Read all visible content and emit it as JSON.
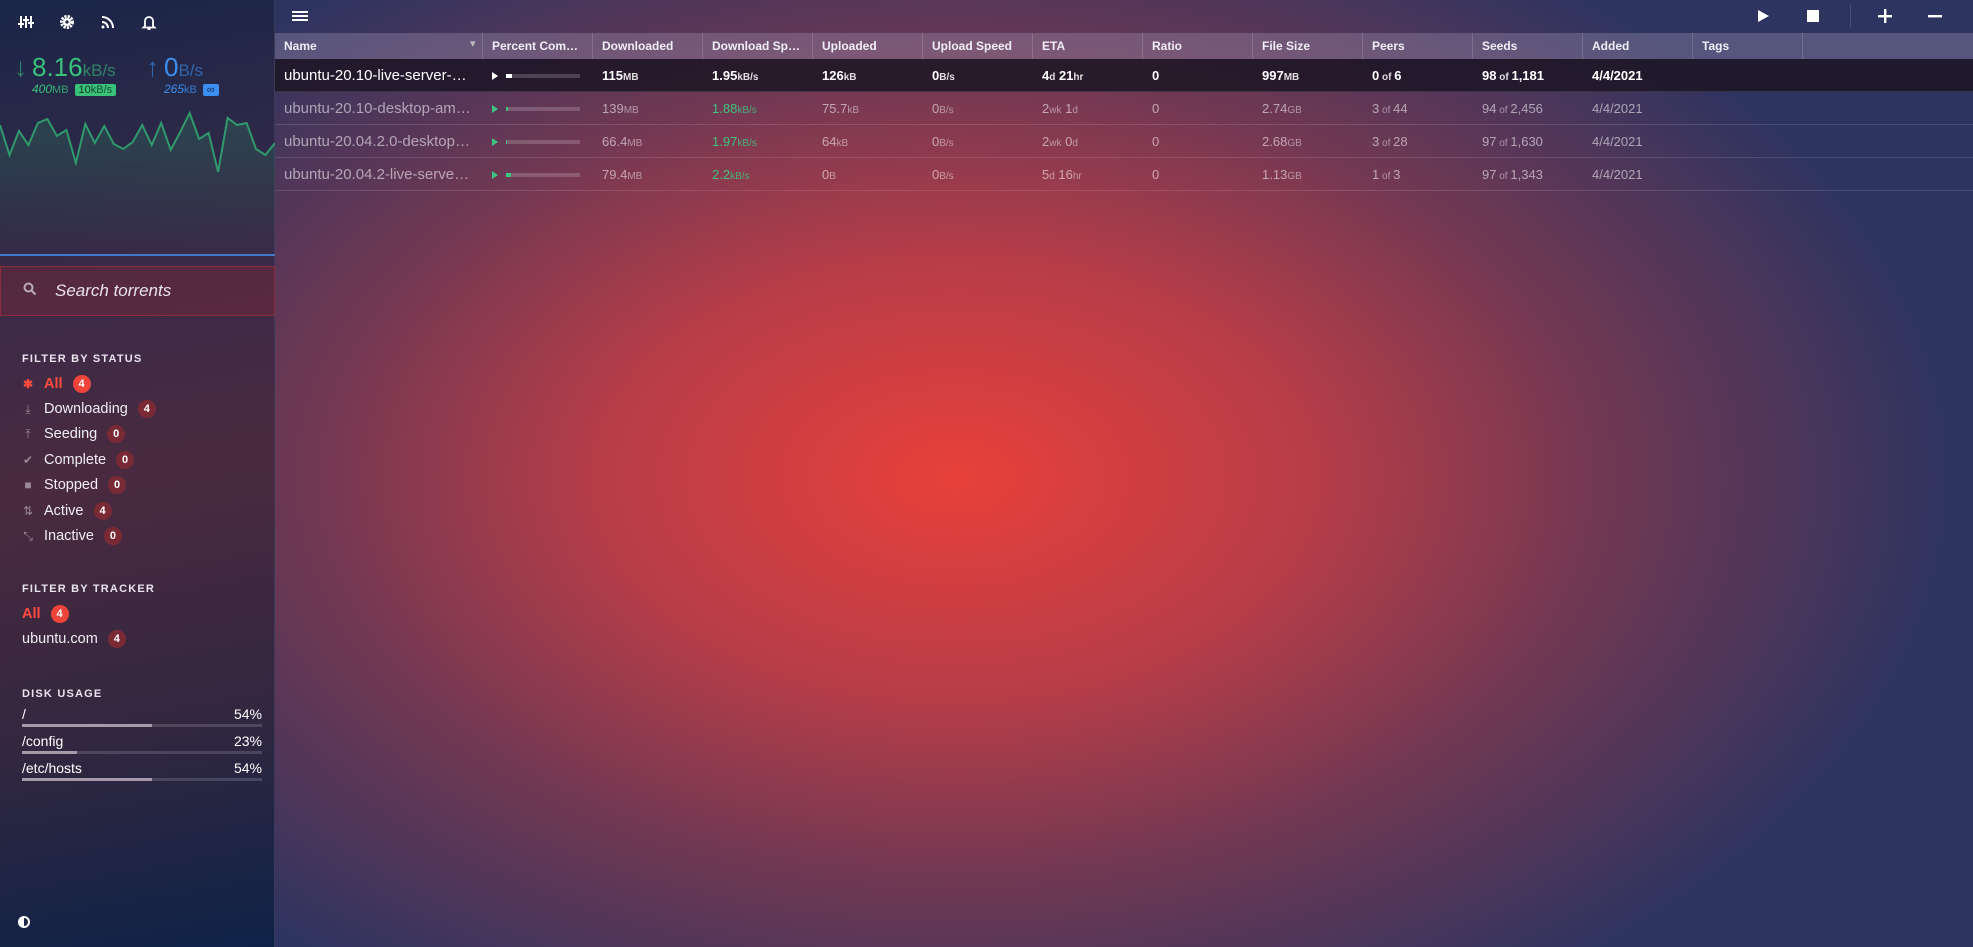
{
  "sidebar": {
    "top_icons": [
      "equalizer-icon",
      "gear-icon",
      "rss-icon",
      "bell-icon"
    ],
    "download": {
      "speed": "8.16",
      "unit": "kB/s",
      "total": "400",
      "total_unit": "MB",
      "limit": "10",
      "limit_unit": "kB/s",
      "color": "#39c27a"
    },
    "upload": {
      "speed": "0",
      "unit": "B/s",
      "total": "265",
      "total_unit": "kB",
      "limit": "∞",
      "color": "#3b8ff0"
    },
    "search": {
      "placeholder": "Search torrents"
    },
    "status": {
      "title": "FILTER BY STATUS",
      "items": [
        {
          "label": "All",
          "count": "4",
          "icon": "asterisk-icon",
          "active": true
        },
        {
          "label": "Downloading",
          "count": "4",
          "icon": "download-icon"
        },
        {
          "label": "Seeding",
          "count": "0",
          "icon": "upload-icon"
        },
        {
          "label": "Complete",
          "count": "0",
          "icon": "check-icon"
        },
        {
          "label": "Stopped",
          "count": "0",
          "icon": "stop-icon"
        },
        {
          "label": "Active",
          "count": "4",
          "icon": "arrows-icon"
        },
        {
          "label": "Inactive",
          "count": "0",
          "icon": "inactive-icon"
        }
      ]
    },
    "tracker": {
      "title": "FILTER BY TRACKER",
      "items": [
        {
          "label": "All",
          "count": "4",
          "active": true
        },
        {
          "label": "ubuntu.com",
          "count": "4"
        }
      ]
    },
    "disk": {
      "title": "DISK USAGE",
      "items": [
        {
          "path": "/",
          "pct": "54%",
          "value": 54
        },
        {
          "path": "/config",
          "pct": "23%",
          "value": 23
        },
        {
          "path": "/etc/hosts",
          "pct": "54%",
          "value": 54
        }
      ]
    }
  },
  "columns": [
    "Name",
    "Percent Com…",
    "Downloaded",
    "Download Sp…",
    "Uploaded",
    "Upload Speed",
    "ETA",
    "Ratio",
    "File Size",
    "Peers",
    "Seeds",
    "Added",
    "Tags"
  ],
  "torrents": [
    {
      "name": "ubuntu-20.10-live-server-…",
      "progress": 8,
      "downloaded": [
        "115",
        "MB"
      ],
      "dl_speed": [
        "1.95",
        "kB/s"
      ],
      "uploaded": [
        "126",
        "kB"
      ],
      "ul_speed": [
        "0",
        "B/s"
      ],
      "eta": [
        "4",
        "d",
        " 21",
        "hr"
      ],
      "ratio": "0",
      "size": [
        "997",
        "MB"
      ],
      "peers": [
        "0",
        " of ",
        "6"
      ],
      "seeds": [
        "98",
        " of ",
        "1,181"
      ],
      "added": "4/4/2021",
      "selected": true
    },
    {
      "name": "ubuntu-20.10-desktop-am…",
      "progress": 3,
      "downloaded": [
        "139",
        "MB"
      ],
      "dl_speed": [
        "1.88",
        "kB/s"
      ],
      "uploaded": [
        "75.7",
        "kB"
      ],
      "ul_speed": [
        "0",
        "B/s"
      ],
      "eta": [
        "2",
        "wk",
        " 1",
        "d"
      ],
      "ratio": "0",
      "size": [
        "2.74",
        "GB"
      ],
      "peers": [
        "3",
        " of ",
        "44"
      ],
      "seeds": [
        "94",
        " of ",
        "2,456"
      ],
      "added": "4/4/2021"
    },
    {
      "name": "ubuntu-20.04.2.0-desktop…",
      "progress": 2,
      "downloaded": [
        "66.4",
        "MB"
      ],
      "dl_speed": [
        "1.97",
        "kB/s"
      ],
      "uploaded": [
        "64",
        "kB"
      ],
      "ul_speed": [
        "0",
        "B/s"
      ],
      "eta": [
        "2",
        "wk",
        " 0",
        "d"
      ],
      "ratio": "0",
      "size": [
        "2.68",
        "GB"
      ],
      "peers": [
        "3",
        " of ",
        "28"
      ],
      "seeds": [
        "97",
        " of ",
        "1,630"
      ],
      "added": "4/4/2021"
    },
    {
      "name": "ubuntu-20.04.2-live-serve…",
      "progress": 7,
      "downloaded": [
        "79.4",
        "MB"
      ],
      "dl_speed": [
        "2.2",
        "kB/s"
      ],
      "uploaded": [
        "0",
        "B"
      ],
      "ul_speed": [
        "0",
        "B/s"
      ],
      "eta": [
        "5",
        "d",
        " 16",
        "hr"
      ],
      "ratio": "0",
      "size": [
        "1.13",
        "GB"
      ],
      "peers": [
        "1",
        " of ",
        "3"
      ],
      "seeds": [
        "97",
        " of ",
        "1,343"
      ],
      "added": "4/4/2021"
    }
  ]
}
